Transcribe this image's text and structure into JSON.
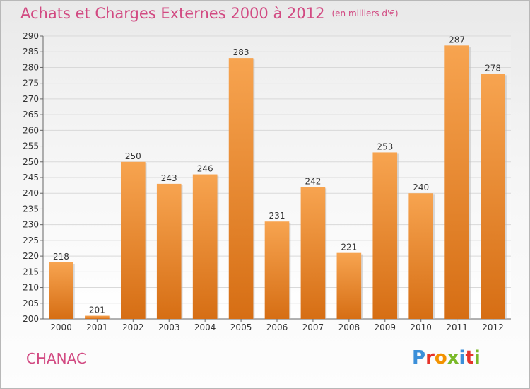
{
  "title": "Achats et Charges Externes 2000 à 2012",
  "unit_label": "(en milliers d'€)",
  "commune": "CHANAC",
  "logo": {
    "text": "Proxiti",
    "letter_colors": [
      "#3b8fd9",
      "#e6332a",
      "#f39200",
      "#7ab929",
      "#3b8fd9",
      "#e6332a",
      "#7ab929"
    ]
  },
  "colors": {
    "bar_top": "#f7a450",
    "bar_bottom": "#d66e14",
    "title": "#d24a82",
    "grid": "#d9d9d9"
  },
  "chart_data": {
    "type": "bar",
    "categories": [
      "2000",
      "2001",
      "2002",
      "2003",
      "2004",
      "2005",
      "2006",
      "2007",
      "2008",
      "2009",
      "2010",
      "2011",
      "2012"
    ],
    "values": [
      218,
      201,
      250,
      243,
      246,
      283,
      231,
      242,
      221,
      253,
      240,
      287,
      278
    ],
    "ylim": [
      200,
      290
    ],
    "ytick_step": 5,
    "grid": true
  }
}
